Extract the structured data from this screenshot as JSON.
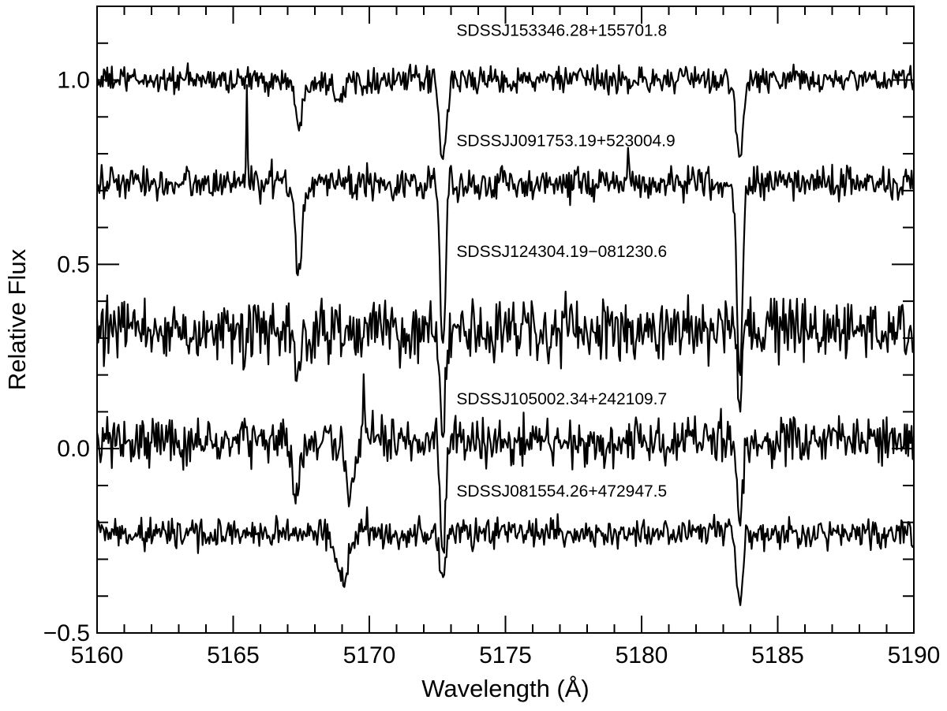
{
  "chart_data": {
    "type": "line",
    "xlabel": "Wavelength (Å)",
    "ylabel": "Relative Flux",
    "xlim": [
      5160,
      5190
    ],
    "ylim": [
      -0.5,
      1.2
    ],
    "x_ticks": [
      5160,
      5165,
      5170,
      5175,
      5180,
      5185,
      5190
    ],
    "x_tick_labels": [
      "5160",
      "5165",
      "5170",
      "5175",
      "5180",
      "5185",
      "5190"
    ],
    "y_ticks": [
      -0.5,
      0.0,
      0.5,
      1.0
    ],
    "y_tick_labels": [
      "−0.5",
      "0.0",
      "0.5",
      "1.0"
    ],
    "x_minor_step": 1,
    "y_minor_step": 0.1,
    "grid": false,
    "legend": "none",
    "line_color": "#000000",
    "series": [
      {
        "name": "SDSSJ153346.28+155701.8",
        "label_position": [
          5173.2,
          1.12
        ],
        "baseline": 1.0,
        "noise": 0.022,
        "spikes": [],
        "lines": [
          {
            "center": 5167.4,
            "depth": 0.14,
            "width": 0.12
          },
          {
            "center": 5168.9,
            "depth": 0.04,
            "width": 0.18
          },
          {
            "center": 5172.7,
            "depth": 0.22,
            "width": 0.13
          },
          {
            "center": 5183.6,
            "depth": 0.22,
            "width": 0.13
          }
        ]
      },
      {
        "name": "SDSSJJ091753.19+523004.9",
        "label_position": [
          5173.2,
          0.82
        ],
        "baseline": 0.72,
        "noise": 0.028,
        "spikes": [
          {
            "x": 5165.5,
            "dy": 0.25
          },
          {
            "x": 5179.5,
            "dy": 0.1
          }
        ],
        "lines": [
          {
            "center": 5167.4,
            "depth": 0.24,
            "width": 0.12
          },
          {
            "center": 5172.7,
            "depth": 0.44,
            "width": 0.1
          },
          {
            "center": 5183.6,
            "depth": 0.52,
            "width": 0.1
          }
        ]
      },
      {
        "name": "SDSSJ124304.19−081230.6",
        "label_position": [
          5173.2,
          0.52
        ],
        "baseline": 0.32,
        "noise": 0.05,
        "spikes": [
          {
            "x": 5165.4,
            "dy": -0.12
          }
        ],
        "lines": [
          {
            "center": 5167.4,
            "depth": 0.15,
            "width": 0.12
          },
          {
            "center": 5172.7,
            "depth": 0.3,
            "width": 0.1
          },
          {
            "center": 5183.6,
            "depth": 0.2,
            "width": 0.1
          }
        ]
      },
      {
        "name": "SDSSJ105002.34+242109.7",
        "label_position": [
          5173.2,
          0.12
        ],
        "baseline": 0.02,
        "noise": 0.04,
        "spikes": [
          {
            "x": 5169.8,
            "dy": 0.2
          }
        ],
        "lines": [
          {
            "center": 5167.3,
            "depth": 0.15,
            "width": 0.13
          },
          {
            "center": 5169.3,
            "depth": 0.16,
            "width": 0.15
          },
          {
            "center": 5172.7,
            "depth": 0.3,
            "width": 0.1
          },
          {
            "center": 5183.6,
            "depth": 0.2,
            "width": 0.1
          }
        ]
      },
      {
        "name": "SDSSJ081554.26+472947.5",
        "label_position": [
          5173.2,
          -0.13
        ],
        "baseline": -0.23,
        "noise": 0.025,
        "spikes": [
          {
            "x": 5169.9,
            "dy": 0.1
          }
        ],
        "lines": [
          {
            "center": 5169.0,
            "depth": 0.13,
            "width": 0.22
          },
          {
            "center": 5172.7,
            "depth": 0.12,
            "width": 0.1
          },
          {
            "center": 5183.6,
            "depth": 0.18,
            "width": 0.1
          }
        ]
      }
    ]
  }
}
